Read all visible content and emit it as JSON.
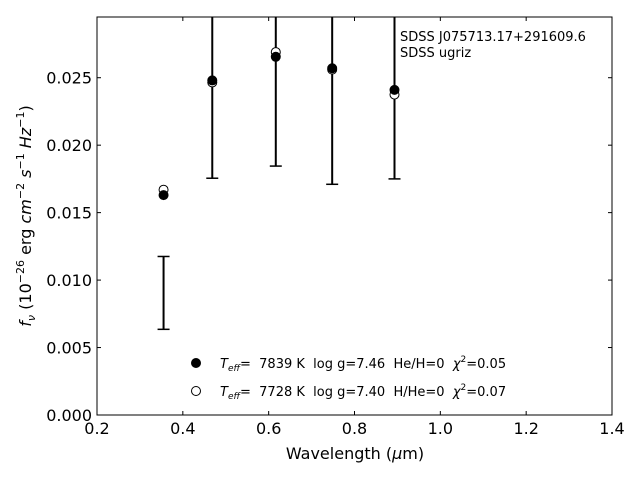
{
  "chart_data": {
    "type": "scatter",
    "title": "",
    "annotations": [
      "SDSS J075713.17+291609.6",
      "SDSS ugriz"
    ],
    "xlabel": "Wavelength (μm)",
    "xlabel_parts": {
      "main": "Wavelength (",
      "unit": "μ",
      "rest": "m)"
    },
    "ylabel_parts": {
      "f": "f",
      "nu": "ν",
      "a": " (10",
      "e1": "−26",
      "b": " erg ",
      "cm": "cm",
      "e2": "−2",
      "s": " s",
      "e3": "−1",
      "hz": " Hz",
      "e4": "−1",
      "c": ")"
    },
    "xlim": [
      0.2,
      1.4
    ],
    "ylim": [
      0.0,
      0.0295
    ],
    "xticks": [
      0.2,
      0.4,
      0.6,
      0.8,
      1.0,
      1.2,
      1.4
    ],
    "xtick_labels": [
      "0.2",
      "0.4",
      "0.6",
      "0.8",
      "1.0",
      "1.2",
      "1.4"
    ],
    "yticks": [
      0.0,
      0.005,
      0.01,
      0.015,
      0.02,
      0.025
    ],
    "ytick_labels": [
      "0.000",
      "0.005",
      "0.010",
      "0.015",
      "0.020",
      "0.025"
    ],
    "grid": false,
    "legend_placement": "lower-center",
    "observed": {
      "x": [
        0.3551,
        0.4686,
        0.6166,
        0.748,
        0.8932
      ],
      "y": [
        0.00905,
        0.02485,
        0.02815,
        0.0248,
        0.0237
      ],
      "err": [
        0.0027,
        0.0073,
        0.0097,
        0.0077,
        0.0062
      ]
    },
    "series": [
      {
        "name_parts": {
          "t": "T",
          "sub": "eff",
          "mid": "=  7839 K  log g=7.46  He/H=0  ",
          "chi": "χ",
          "sup": "2",
          "end": "=0.05"
        },
        "marker": "filled",
        "x": [
          0.3551,
          0.4686,
          0.6166,
          0.748,
          0.8932
        ],
        "y": [
          0.0163,
          0.0248,
          0.02655,
          0.0257,
          0.0241
        ]
      },
      {
        "name_parts": {
          "t": "T",
          "sub": "eff",
          "mid": "=  7728 K  log g=7.40  H/He=0  ",
          "chi": "χ",
          "sup": "2",
          "end": "=0.07"
        },
        "marker": "open",
        "x": [
          0.3551,
          0.4686,
          0.6166,
          0.748,
          0.8932
        ],
        "y": [
          0.0167,
          0.02465,
          0.0269,
          0.0256,
          0.02375
        ]
      }
    ]
  }
}
